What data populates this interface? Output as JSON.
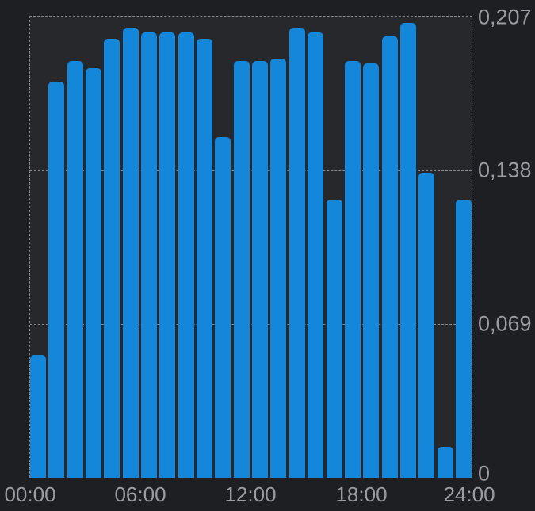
{
  "chart_data": {
    "type": "bar",
    "title": "",
    "xlabel": "",
    "ylabel": "",
    "x_unit": "hour of day",
    "x_range_hours": [
      0,
      24
    ],
    "ylim": [
      0,
      0.207
    ],
    "grid": "dashed horizontal lines at 0.069 and 0.138, dashed plot border",
    "legend": false,
    "categories": [
      "00:00",
      "01:00",
      "02:00",
      "03:00",
      "04:00",
      "05:00",
      "06:00",
      "07:00",
      "08:00",
      "09:00",
      "10:00",
      "11:00",
      "12:00",
      "13:00",
      "14:00",
      "15:00",
      "16:00",
      "17:00",
      "18:00",
      "19:00",
      "20:00",
      "21:00",
      "22:00",
      "23:00"
    ],
    "values": [
      0.055,
      0.178,
      0.187,
      0.184,
      0.197,
      0.202,
      0.2,
      0.2,
      0.2,
      0.197,
      0.153,
      0.187,
      0.187,
      0.188,
      0.202,
      0.2,
      0.125,
      0.187,
      0.186,
      0.198,
      0.204,
      0.137,
      0.014,
      0.125
    ],
    "y_tick_labels_top_to_bottom": [
      "0,207",
      "0,138",
      "0,069",
      "0"
    ],
    "x_tick_labels": [
      "00:00",
      "06:00",
      "12:00",
      "18:00",
      "24:00"
    ]
  },
  "colors": {
    "bar": "#1487da",
    "page_background": "#1d1f22",
    "plot_background": "#26282c",
    "grid_dash": "#85878c",
    "axis_text": "#9b9ca1"
  }
}
